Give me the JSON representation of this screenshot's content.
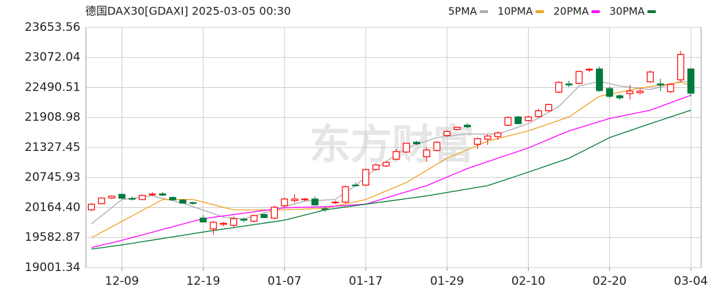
{
  "chart_data": {
    "type": "candlestick",
    "title": "德国DAX30[GDAXI] 2025-03-05 00:30",
    "watermark": "东方财富",
    "up_color": "#ff0000",
    "down_color": "#007a3d",
    "grid": true,
    "legend": "top-right",
    "ylim": [
      19001.34,
      23653.56
    ],
    "yticks": [
      19001.34,
      19582.87,
      {
        "value": 20164.4,
        "label": "20164.40"
      },
      20745.93,
      21327.45,
      21908.98,
      22490.51,
      23072.04,
      23653.56
    ],
    "categories": [
      null,
      null,
      null,
      "12-09",
      null,
      null,
      null,
      null,
      null,
      null,
      null,
      "12-19",
      null,
      null,
      null,
      null,
      null,
      null,
      null,
      "01-07",
      null,
      null,
      null,
      null,
      null,
      null,
      null,
      "01-17",
      null,
      null,
      null,
      null,
      null,
      null,
      null,
      "01-29",
      null,
      null,
      null,
      null,
      null,
      null,
      null,
      "02-10",
      null,
      null,
      null,
      null,
      null,
      null,
      null,
      "02-20",
      null,
      null,
      null,
      null,
      null,
      null,
      null,
      "03-04"
    ],
    "open": [
      20120,
      20240,
      20350,
      20420,
      20340,
      20320,
      20410,
      20430,
      20360,
      20310,
      20260,
      19960,
      19750,
      19840,
      19820,
      19940,
      19900,
      20030,
      19960,
      20200,
      20300,
      20320,
      20330,
      20140,
      20260,
      20270,
      20600,
      20600,
      20900,
      20970,
      21100,
      21240,
      21430,
      21150,
      21270,
      21560,
      21680,
      21760,
      21390,
      21490,
      21540,
      21760,
      21920,
      21850,
      21930,
      22040,
      22400,
      22560,
      22570,
      22830,
      22850,
      22470,
      22330,
      22370,
      22390,
      22600,
      22560,
      22410,
      22640,
      22850
    ],
    "high": [
      20250,
      20360,
      20400,
      20440,
      20380,
      20420,
      20460,
      20470,
      20380,
      20330,
      20280,
      20020,
      19900,
      19890,
      19990,
      19970,
      20030,
      20050,
      20200,
      20360,
      20420,
      20350,
      20380,
      20180,
      20300,
      20590,
      20650,
      20920,
      21020,
      21060,
      21300,
      21420,
      21460,
      21330,
      21450,
      21660,
      21730,
      21800,
      21520,
      21580,
      21640,
      21930,
      21940,
      21940,
      22080,
      22180,
      22610,
      22620,
      22820,
      22860,
      22900,
      22510,
      22360,
      22540,
      22470,
      22820,
      22660,
      22570,
      23200,
      22870
    ],
    "low": [
      20100,
      20230,
      20330,
      20330,
      20300,
      20310,
      20390,
      20390,
      20300,
      20240,
      20220,
      19880,
      19640,
      19800,
      19790,
      19880,
      19880,
      19960,
      19940,
      20180,
      20260,
      20290,
      20200,
      20080,
      20230,
      20250,
      20570,
      20580,
      20880,
      20950,
      21080,
      21220,
      21380,
      21050,
      21250,
      21540,
      21660,
      21700,
      21300,
      21380,
      21480,
      21740,
      21780,
      21830,
      21910,
      22020,
      22380,
      22500,
      22550,
      22790,
      22410,
      22280,
      22250,
      22260,
      22360,
      22580,
      22420,
      22380,
      22600,
      22320
    ],
    "close": [
      20230,
      20350,
      20385,
      20345,
      20330,
      20400,
      20425,
      20405,
      20315,
      20250,
      20245,
      19885,
      19880,
      19860,
      19950,
      19920,
      20010,
      19970,
      20170,
      20330,
      20330,
      20330,
      20215,
      20130,
      20270,
      20570,
      20590,
      20900,
      20990,
      21040,
      21250,
      21410,
      21400,
      21280,
      21430,
      21640,
      21720,
      21730,
      21500,
      21550,
      21610,
      21910,
      21790,
      21920,
      22040,
      22160,
      22590,
      22540,
      22800,
      22845,
      22430,
      22320,
      22290,
      22420,
      22420,
      22790,
      22540,
      22550,
      23130,
      22380
    ],
    "series": [
      {
        "name": "5PMA",
        "color": "#aaaaaa",
        "values": [
          19850,
          20007,
          20163,
          20320,
          20343,
          20367,
          20390,
          20343,
          20297,
          20250,
          20183,
          20115,
          20048,
          19980,
          19960,
          19940,
          20000,
          20060,
          20120,
          20180,
          20235,
          20290,
          20300,
          20310,
          20320,
          20455,
          20590,
          20755,
          20920,
          21053,
          21187,
          21320,
          21387,
          21453,
          21520,
          21543,
          21567,
          21590,
          21590,
          21590,
          21590,
          21657,
          21723,
          21790,
          21900,
          22010,
          22120,
          22320,
          22520,
          22565,
          22610,
          22565,
          22520,
          22497,
          22473,
          22450,
          22503,
          22557,
          22610,
          22600
        ]
      },
      {
        "name": "10PMA",
        "color": "#f0a020",
        "values": [
          19580,
          19686,
          19791,
          19897,
          20003,
          20109,
          20214,
          20320,
          20320,
          20320,
          20320,
          20270,
          20220,
          20170,
          20120,
          20120,
          20120,
          20120,
          20120,
          20120,
          20128,
          20135,
          20143,
          20150,
          20193,
          20235,
          20278,
          20320,
          20403,
          20485,
          20568,
          20650,
          20768,
          20885,
          21003,
          21120,
          21203,
          21285,
          21368,
          21450,
          21500,
          21550,
          21600,
          21650,
          21718,
          21785,
          21853,
          21920,
          22053,
          22187,
          22320,
          22360,
          22400,
          22440,
          22480,
          22508,
          22535,
          22563,
          22590,
          22530
        ]
      },
      {
        "name": "20PMA",
        "color": "#ff00ff",
        "values": [
          19390,
          19437,
          19483,
          19530,
          19583,
          19635,
          19688,
          19740,
          19793,
          19845,
          19898,
          19950,
          19976,
          20003,
          20029,
          20055,
          20081,
          20108,
          20134,
          20160,
          20165,
          20170,
          20175,
          20180,
          20193,
          20205,
          20218,
          20230,
          20290,
          20350,
          20410,
          20470,
          20530,
          20590,
          20673,
          20755,
          20838,
          20920,
          20987,
          21053,
          21120,
          21187,
          21253,
          21320,
          21403,
          21485,
          21568,
          21650,
          21710,
          21770,
          21830,
          21890,
          21930,
          21970,
          22010,
          22050,
          22123,
          22195,
          22268,
          22340
        ]
      },
      {
        "name": "30PMA",
        "color": "#007733",
        "values": [
          19360,
          19387,
          19413,
          19440,
          19471,
          19503,
          19534,
          19565,
          19596,
          19628,
          19659,
          19690,
          19719,
          19748,
          19776,
          19805,
          19834,
          19863,
          19891,
          19920,
          19970,
          20020,
          20070,
          20120,
          20148,
          20175,
          20203,
          20230,
          20257,
          20283,
          20310,
          20337,
          20363,
          20390,
          20423,
          20457,
          20490,
          20523,
          20557,
          20590,
          20655,
          20720,
          20785,
          20850,
          20918,
          20985,
          21053,
          21120,
          21220,
          21320,
          21420,
          21520,
          21588,
          21655,
          21723,
          21790,
          21855,
          21920,
          21985,
          22050
        ]
      }
    ]
  }
}
